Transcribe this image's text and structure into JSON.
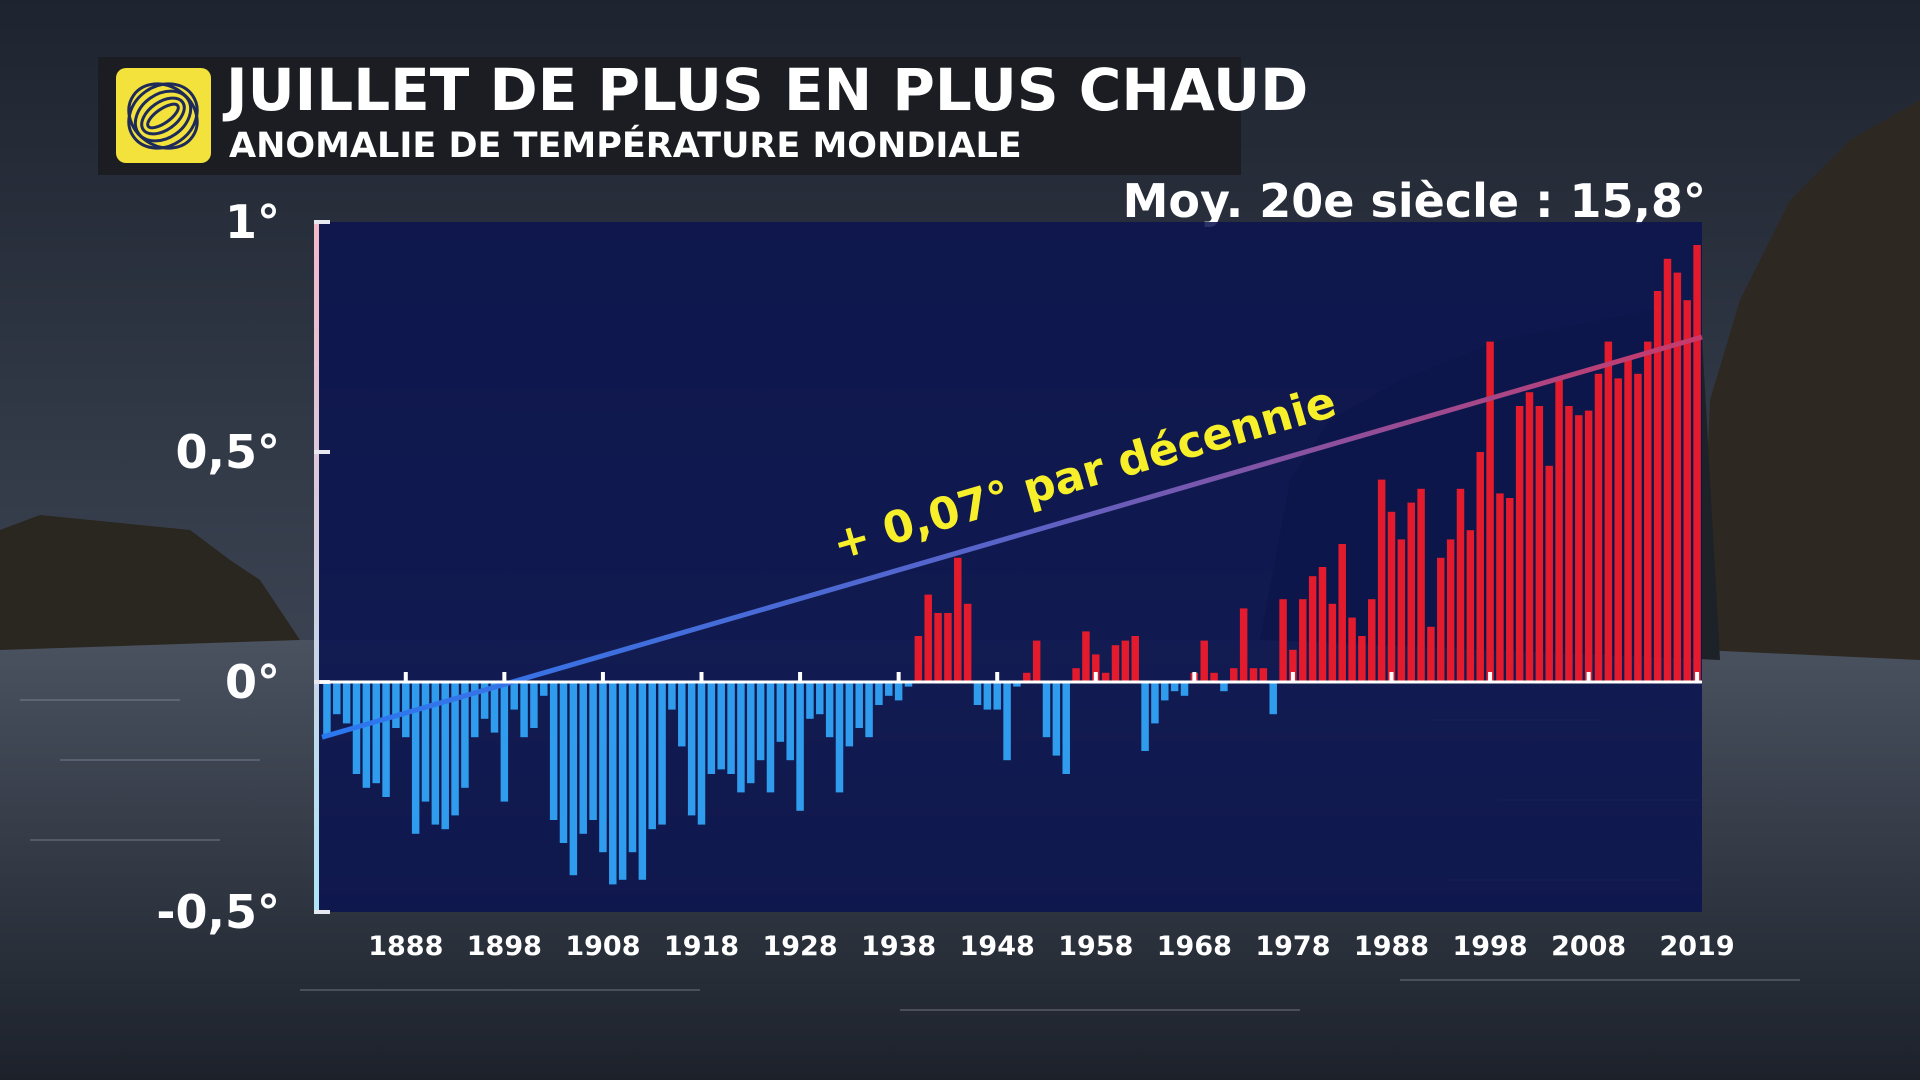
{
  "header": {
    "title": "JUILLET DE PLUS EN PLUS CHAUD",
    "subtitle": "ANOMALIE DE TEMPÉRATURE MONDIALE",
    "baseline_note": "Moy. 20e siècle : 15,8°",
    "logo_icon": "globe-logo-icon"
  },
  "colors": {
    "positive": "#e31b2c",
    "negative": "#2f9cee",
    "plot_bg": "#0b1450",
    "title_bg": "#1b1d22",
    "logo_bg": "#f2e23b",
    "trend_label": "#f7ef2a"
  },
  "chart_data": {
    "type": "bar",
    "title": "JUILLET DE PLUS EN PLUS CHAUD",
    "subtitle": "ANOMALIE DE TEMPÉRATURE MONDIALE",
    "xlabel": "",
    "ylabel": "",
    "ylim": [
      -0.5,
      1
    ],
    "y_ticks": [
      {
        "value": 1,
        "label": "1°"
      },
      {
        "value": 0.5,
        "label": "0,5°"
      },
      {
        "value": 0,
        "label": "0°"
      },
      {
        "value": -0.5,
        "label": "-0,5°"
      }
    ],
    "x_tick_labels": [
      "1888",
      "1898",
      "1908",
      "1918",
      "1928",
      "1938",
      "1948",
      "1958",
      "1968",
      "1978",
      "1988",
      "1998",
      "2008",
      "2019"
    ],
    "x_range": [
      1880,
      2019
    ],
    "trend": {
      "label": "+ 0,07° par décennie",
      "start": {
        "year": 1880,
        "value": -0.12
      },
      "end": {
        "year": 2019,
        "value": 0.75
      }
    },
    "years": [
      1880,
      1881,
      1882,
      1883,
      1884,
      1885,
      1886,
      1887,
      1888,
      1889,
      1890,
      1891,
      1892,
      1893,
      1894,
      1895,
      1896,
      1897,
      1898,
      1899,
      1900,
      1901,
      1902,
      1903,
      1904,
      1905,
      1906,
      1907,
      1908,
      1909,
      1910,
      1911,
      1912,
      1913,
      1914,
      1915,
      1916,
      1917,
      1918,
      1919,
      1920,
      1921,
      1922,
      1923,
      1924,
      1925,
      1926,
      1927,
      1928,
      1929,
      1930,
      1931,
      1932,
      1933,
      1934,
      1935,
      1936,
      1937,
      1938,
      1939,
      1940,
      1941,
      1942,
      1943,
      1944,
      1945,
      1946,
      1947,
      1948,
      1949,
      1950,
      1951,
      1952,
      1953,
      1954,
      1955,
      1956,
      1957,
      1958,
      1959,
      1960,
      1961,
      1962,
      1963,
      1964,
      1965,
      1966,
      1967,
      1968,
      1969,
      1970,
      1971,
      1972,
      1973,
      1974,
      1975,
      1976,
      1977,
      1978,
      1979,
      1980,
      1981,
      1982,
      1983,
      1984,
      1985,
      1986,
      1987,
      1988,
      1989,
      1990,
      1991,
      1992,
      1993,
      1994,
      1995,
      1996,
      1997,
      1998,
      1999,
      2000,
      2001,
      2002,
      2003,
      2004,
      2005,
      2006,
      2007,
      2008,
      2009,
      2010,
      2011,
      2012,
      2013,
      2014,
      2015,
      2016,
      2017,
      2018,
      2019
    ],
    "values": [
      -0.12,
      -0.07,
      -0.09,
      -0.2,
      -0.23,
      -0.22,
      -0.25,
      -0.1,
      -0.12,
      -0.33,
      -0.26,
      -0.31,
      -0.32,
      -0.29,
      -0.23,
      -0.12,
      -0.08,
      -0.11,
      -0.26,
      -0.06,
      -0.12,
      -0.1,
      -0.03,
      -0.3,
      -0.35,
      -0.42,
      -0.33,
      -0.3,
      -0.37,
      -0.44,
      -0.43,
      -0.37,
      -0.43,
      -0.32,
      -0.31,
      -0.06,
      -0.14,
      -0.29,
      -0.31,
      -0.2,
      -0.19,
      -0.2,
      -0.24,
      -0.22,
      -0.17,
      -0.24,
      -0.13,
      -0.17,
      -0.28,
      -0.08,
      -0.07,
      -0.12,
      -0.24,
      -0.14,
      -0.1,
      -0.12,
      -0.05,
      -0.03,
      -0.04,
      -0.01,
      0.1,
      0.19,
      0.15,
      0.15,
      0.27,
      0.17,
      -0.05,
      -0.06,
      -0.06,
      -0.17,
      -0.01,
      0.02,
      0.09,
      -0.12,
      -0.16,
      -0.2,
      0.03,
      0.11,
      0.06,
      0.02,
      0.08,
      0.09,
      0.1,
      -0.15,
      -0.09,
      -0.04,
      -0.02,
      -0.03,
      0.02,
      0.09,
      0.02,
      -0.02,
      0.03,
      0.16,
      0.03,
      0.03,
      -0.07,
      0.18,
      0.07,
      0.18,
      0.23,
      0.25,
      0.17,
      0.3,
      0.14,
      0.1,
      0.18,
      0.44,
      0.37,
      0.31,
      0.39,
      0.42,
      0.12,
      0.27,
      0.31,
      0.42,
      0.33,
      0.5,
      0.74,
      0.41,
      0.4,
      0.6,
      0.63,
      0.6,
      0.47,
      0.66,
      0.6,
      0.58,
      0.59,
      0.67,
      0.74,
      0.66,
      0.7,
      0.67,
      0.74,
      0.85,
      0.92,
      0.89,
      0.83,
      0.95
    ]
  }
}
